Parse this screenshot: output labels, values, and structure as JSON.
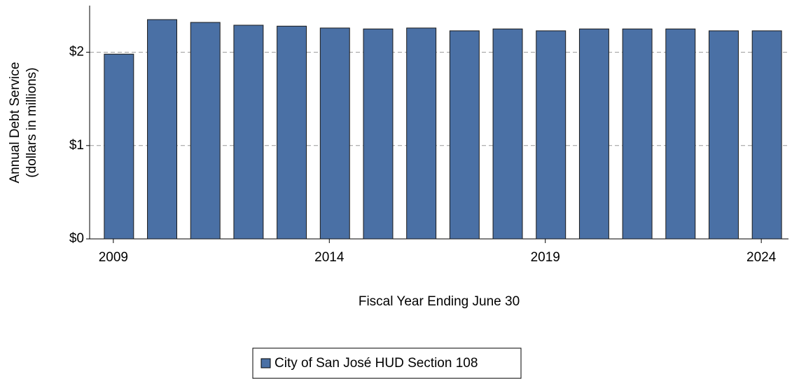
{
  "chart_data": {
    "type": "bar",
    "x_label": "Fiscal Year Ending June 30",
    "y_label": [
      "Annual Debt Service",
      "(dollars in millions)"
    ],
    "categories": [
      "2009",
      null,
      null,
      null,
      null,
      "2014",
      null,
      null,
      null,
      null,
      "2019",
      null,
      null,
      null,
      null,
      "2024"
    ],
    "series": [
      {
        "name": "City of San José HUD Section 108",
        "color": "#4a70a5",
        "values": [
          1.98,
          2.35,
          2.32,
          2.29,
          2.28,
          2.26,
          2.25,
          2.26,
          2.23,
          2.25,
          2.23,
          2.25,
          2.25,
          2.25,
          2.23,
          2.23
        ]
      }
    ],
    "ylim": [
      0,
      2.5
    ],
    "yticks": [
      {
        "value": 0,
        "label": "$0"
      },
      {
        "value": 1,
        "label": "$1"
      },
      {
        "value": 2,
        "label": "$2"
      }
    ],
    "grid": true
  }
}
